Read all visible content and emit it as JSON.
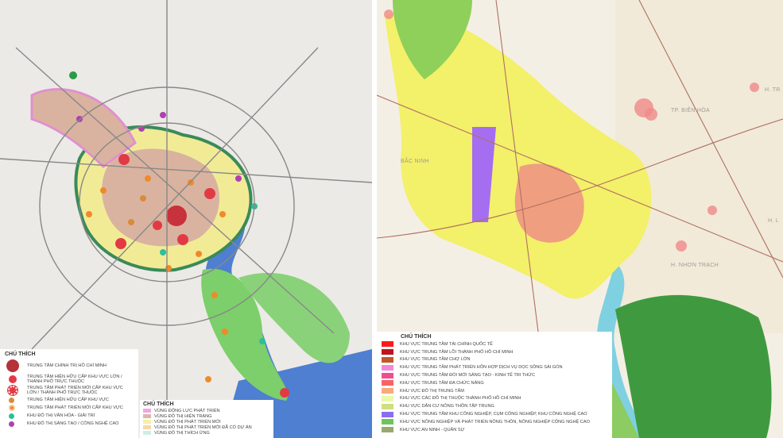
{
  "left_map": {
    "legend_centers": {
      "title": "CHÚ THÍCH",
      "items": [
        {
          "label": "TRUNG TÂM CHÍNH TRỊ HỒ CHÍ MINH",
          "symbol": "large-circle",
          "color": "#b5323a"
        },
        {
          "label": "TRUNG TÂM HIỆN HỮU CẤP KHU VỰC LỚN / THÀNH PHỐ TRỰC THUỘC",
          "symbol": "circle",
          "color": "#e23a44"
        },
        {
          "label": "TRUNG TÂM PHÁT TRIỂN MỚI CẤP KHU VỰC LỚN / THÀNH PHỐ TRỰC THUỘC",
          "symbol": "dashed-circle",
          "color": "#e23a44"
        },
        {
          "label": "TRUNG TÂM HIỆN HỮU CẤP KHU VỰC",
          "symbol": "dot",
          "color": "#d98b3a"
        },
        {
          "label": "TRUNG TÂM PHÁT TRIỂN MỚI CẤP KHU VỰC",
          "symbol": "ring-dot",
          "color": "#ef8a2a"
        },
        {
          "label": "KHU ĐÔ THỊ VĂN HÓA - GIẢI TRÍ",
          "symbol": "dot",
          "color": "#2cbf9a"
        },
        {
          "label": "KHU ĐÔ THỊ SÁNG TẠO / CÔNG NGHỆ CAO",
          "symbol": "dot",
          "color": "#b040b0"
        }
      ]
    },
    "legend_zones": {
      "title": "CHÚ THÍCH",
      "items": [
        {
          "label": "VÙNG ĐỘNG LỰC PHÁT TRIỂN",
          "color": "#f2a6e0"
        },
        {
          "label": "VÙNG ĐÔ THỊ HIỆN TRẠNG",
          "color": "#d9b8a8"
        },
        {
          "label": "VÙNG ĐÔ THỊ PHÁT TRIỂN MỚI",
          "color": "#f6f0a0"
        },
        {
          "label": "VÙNG ĐÔ THỊ PHÁT TRIỂN MỚI ĐÃ CÓ DỰ ÁN",
          "color": "#f6d7a8"
        },
        {
          "label": "VÙNG ĐÔ THỊ THÍCH ỨNG",
          "color": "#cdeee6"
        }
      ]
    }
  },
  "right_map": {
    "places": [
      "TP. BIÊN HÒA",
      "H. NHƠN TRẠCH",
      "H. TR",
      "H. L",
      "BẮC NINH"
    ],
    "legend": {
      "title": "CHÚ THÍCH",
      "items": [
        {
          "label": "KHU VỰC TRUNG TÂM TÀI CHÍNH QUỐC TẾ",
          "color": "#ff1a1a"
        },
        {
          "label": "KHU VỰC TRUNG TÂM LÕI THÀNH PHỐ HỒ CHÍ MINH",
          "color": "#c0141c"
        },
        {
          "label": "KHU VỰC TRUNG TÂM CHỢ LỚN",
          "color": "#c0582a"
        },
        {
          "label": "KHU VỰC TRUNG TÂM PHÁT TRIỂN HỖN HỢP DỊCH VỤ DỌC SÔNG SÀI GÒN",
          "color": "#f08ad8"
        },
        {
          "label": "KHU VỰC TRUNG TÂM ĐỔI MỚI SÁNG TẠO - KINH TẾ TRI THỨC",
          "color": "#ee4f8c"
        },
        {
          "label": "KHU VỰC TRUNG TÂM ĐA CHỨC NĂNG",
          "color": "#f86464"
        },
        {
          "label": "KHU VỰC ĐÔ THỊ TRUNG TÂM",
          "color": "#f8aa78"
        },
        {
          "label": "KHU VỰC CÁC ĐÔ THỊ THUỘC THÀNH PHỐ HỒ CHÍ MINH",
          "color": "#eaf8a8"
        },
        {
          "label": "KHU VỰC DÂN CƯ NÔNG THÔN TẬP TRUNG",
          "color": "#cede80"
        },
        {
          "label": "KHU VỰC TRUNG TÂM KHU CÔNG NGHIỆP, CỤM CÔNG NGHIỆP, KHU CÔNG NGHỆ CAO",
          "color": "#8a6ef0"
        },
        {
          "label": "KHU VỰC NÔNG NGHIỆP VÀ PHÁT TRIỂN NÔNG THÔN, NÔNG NGHIỆP CÔNG NGHỆ CAO",
          "color": "#6cc460"
        },
        {
          "label": "KHU VỰC AN NINH - QUÂN SỰ",
          "color": "#9aa870"
        }
      ]
    }
  }
}
